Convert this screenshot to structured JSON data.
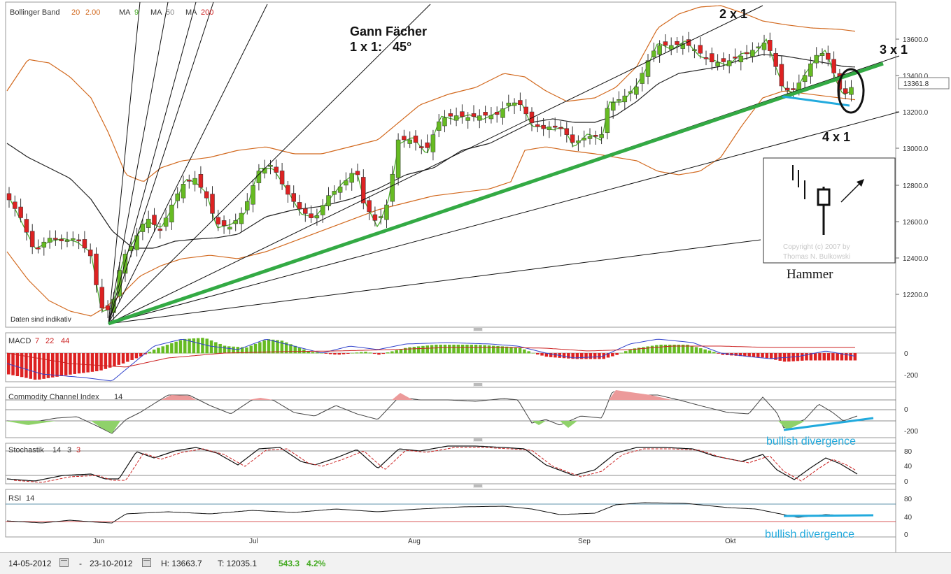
{
  "main_legend": {
    "bb_label": "Bollinger Band",
    "bb_period": "20",
    "bb_dev": "2.00",
    "ma1_label": "MA",
    "ma1_value": "9",
    "ma2_label": "MA",
    "ma2_value": "50",
    "ma3_label": "MA",
    "ma3_value": "200"
  },
  "annotations": {
    "gann_title": "Gann Fächer",
    "gann_ratio": "1 x 1:   45°",
    "ratio_2x1": "2 x 1",
    "ratio_3x1": "3 x 1",
    "ratio_4x1": "4 x 1",
    "hammer_caption": "Hammer",
    "hammer_copyright_1": "Copyright (c) 2007 by",
    "hammer_copyright_2": "Thomas N. Bulkowski",
    "daten_note": "Daten sind indikativ",
    "bullish_div_cci": "bullish divergence",
    "bullish_div_rsi": "bullish divergence"
  },
  "price_axis": {
    "ticks": [
      "13600.0",
      "13400.0",
      "13200.0",
      "13000.0",
      "12800.0",
      "12600.0",
      "12400.0",
      "12200.0"
    ],
    "current_price": "13361.8"
  },
  "macd": {
    "label": "MACD",
    "p1": "7",
    "p2": "22",
    "p3": "44",
    "ticks": [
      "0",
      "-200"
    ]
  },
  "cci": {
    "label": "Commodity Channel Index",
    "period": "14",
    "ticks": [
      "0",
      "-200"
    ]
  },
  "stoch": {
    "label": "Stochastik",
    "p1": "14",
    "p2": "3",
    "p3": "3",
    "ticks": [
      "80",
      "40",
      "0"
    ]
  },
  "rsi": {
    "label": "RSI",
    "period": "14",
    "ticks": [
      "80",
      "40",
      "0"
    ]
  },
  "x_labels": [
    "Jun",
    "Jul",
    "Aug",
    "Sep",
    "Okt"
  ],
  "footer": {
    "start_date": "14-05-2012",
    "dash": "-",
    "end_date": "23-10-2012",
    "high": "H: 13663.7",
    "low": "T: 12035.1",
    "change": "543.3",
    "change_pct": "4.2%"
  },
  "colors": {
    "up": "#66bb22",
    "down": "#dd2222",
    "bb": "#d2691e",
    "ma9": "#44aa22",
    "ma50": "#222222",
    "trend": "#33aa44",
    "divergence": "#22aadd",
    "signal": "#cc2222",
    "macd_line": "#3344cc"
  },
  "chart_data": {
    "type": "candlestick",
    "ylim": [
      12035.1,
      13663.7
    ],
    "x": [
      "Jun",
      "Jul",
      "Aug",
      "Sep",
      "Okt"
    ],
    "indicators": [
      "Bollinger Band 20 2.00",
      "MA 9",
      "MA 50",
      "MA 200",
      "MACD 7 22 44",
      "Commodity Channel Index 14",
      "Stochastik 14 3 3",
      "RSI 14"
    ]
  }
}
